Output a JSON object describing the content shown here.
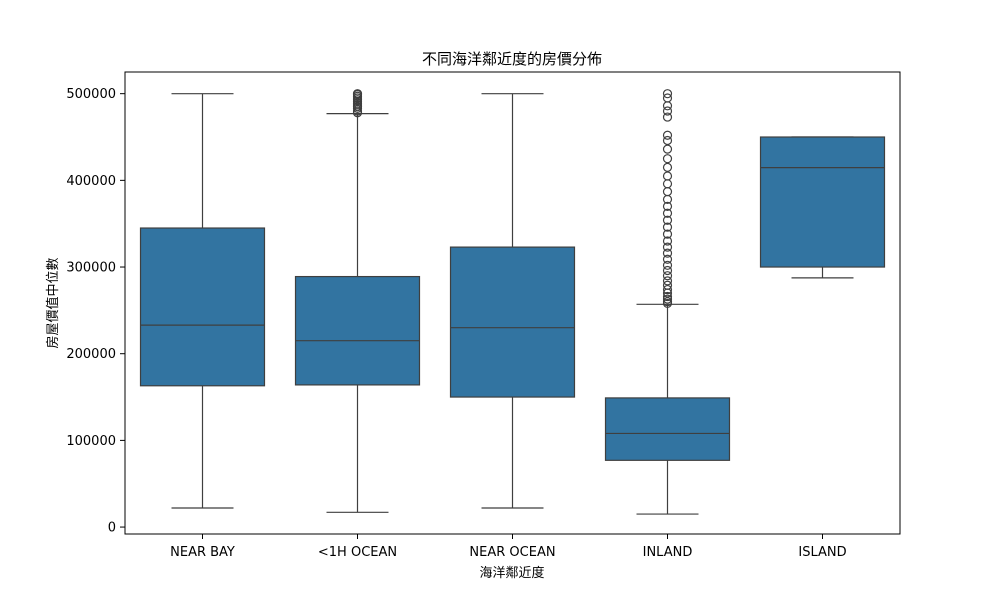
{
  "chart_data": {
    "type": "box",
    "title": "不同海洋鄰近度的房價分佈",
    "xlabel": "海洋鄰近度",
    "ylabel": "房屋價值中位數",
    "ylim": [
      -8000,
      525000
    ],
    "yticks": [
      0,
      100000,
      200000,
      300000,
      400000,
      500000
    ],
    "ytick_labels": [
      "0",
      "100000",
      "200000",
      "300000",
      "400000",
      "500000"
    ],
    "box_color": "#3274a1",
    "line_color": "#3f3f3f",
    "categories": [
      "NEAR BAY",
      "<1H OCEAN",
      "NEAR OCEAN",
      "INLAND",
      "ISLAND"
    ],
    "boxes": [
      {
        "category": "NEAR BAY",
        "whisker_low": 22000,
        "q1": 163000,
        "median": 233000,
        "q3": 345000,
        "whisker_high": 500000,
        "outliers": []
      },
      {
        "category": "<1H OCEAN",
        "whisker_low": 17000,
        "q1": 164000,
        "median": 215000,
        "q3": 289000,
        "whisker_high": 477000,
        "outliers": [
          478000,
          480000,
          483000,
          485000,
          487000,
          489000,
          491000,
          493000,
          495000,
          497000,
          499000,
          500000
        ]
      },
      {
        "category": "NEAR OCEAN",
        "whisker_low": 22000,
        "q1": 150000,
        "median": 230000,
        "q3": 323000,
        "whisker_high": 500000,
        "outliers": []
      },
      {
        "category": "INLAND",
        "whisker_low": 15000,
        "q1": 77000,
        "median": 108000,
        "q3": 149000,
        "whisker_high": 257000,
        "outliers": [
          258000,
          260000,
          263000,
          266000,
          270000,
          274000,
          279000,
          284000,
          290000,
          296000,
          302000,
          309000,
          316000,
          323000,
          330000,
          338000,
          346000,
          354000,
          362000,
          370000,
          378000,
          387000,
          396000,
          405000,
          415000,
          425000,
          436000,
          446000,
          452000,
          473000,
          480000,
          486000,
          495000,
          500000
        ]
      },
      {
        "category": "ISLAND",
        "whisker_low": 287500,
        "q1": 300000,
        "median": 414700,
        "q3": 450000,
        "whisker_high": 450000,
        "outliers": []
      }
    ]
  }
}
